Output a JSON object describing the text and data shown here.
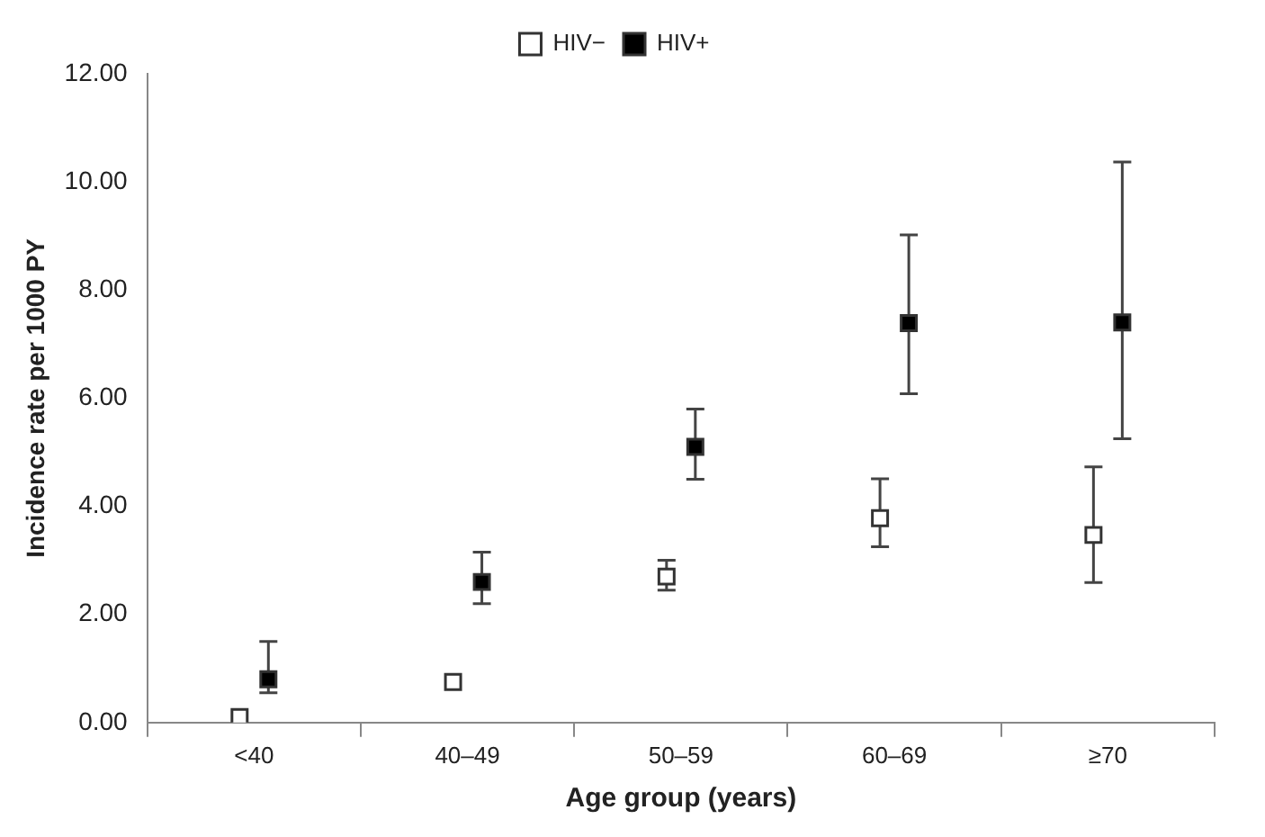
{
  "chart_data": {
    "type": "scatter",
    "xlabel": "Age group (years)",
    "ylabel": "Incidence rate per 1000 PY",
    "categories": [
      "<40",
      "40–49",
      "50–59",
      "60–69",
      "≥70"
    ],
    "series": [
      {
        "name": "HIV−",
        "color": "#ffffff",
        "values": [
          0.1,
          0.75,
          2.7,
          3.78,
          3.47
        ],
        "errors": [
          null,
          null,
          [
            2.45,
            3.0
          ],
          [
            3.25,
            4.51
          ],
          [
            2.59,
            4.73
          ]
        ]
      },
      {
        "name": "HIV+",
        "color": "#000000",
        "values": [
          0.8,
          2.6,
          5.1,
          7.39,
          7.4
        ],
        "errors": [
          [
            0.55,
            1.5
          ],
          [
            2.2,
            3.15
          ],
          [
            4.5,
            5.8
          ],
          [
            6.08,
            9.02
          ],
          [
            5.25,
            10.37
          ]
        ]
      }
    ],
    "ylim": [
      0,
      12
    ],
    "yticks": [
      {
        "value": 0,
        "label": "0.00"
      },
      {
        "value": 2,
        "label": "2.00"
      },
      {
        "value": 4,
        "label": "4.00"
      },
      {
        "value": 6,
        "label": "6.00"
      },
      {
        "value": 8,
        "label": "8.00"
      },
      {
        "value": 10,
        "label": "10.00"
      },
      {
        "value": 12,
        "label": "12.00"
      }
    ],
    "marker": "square",
    "grid": false,
    "legend": "top"
  }
}
